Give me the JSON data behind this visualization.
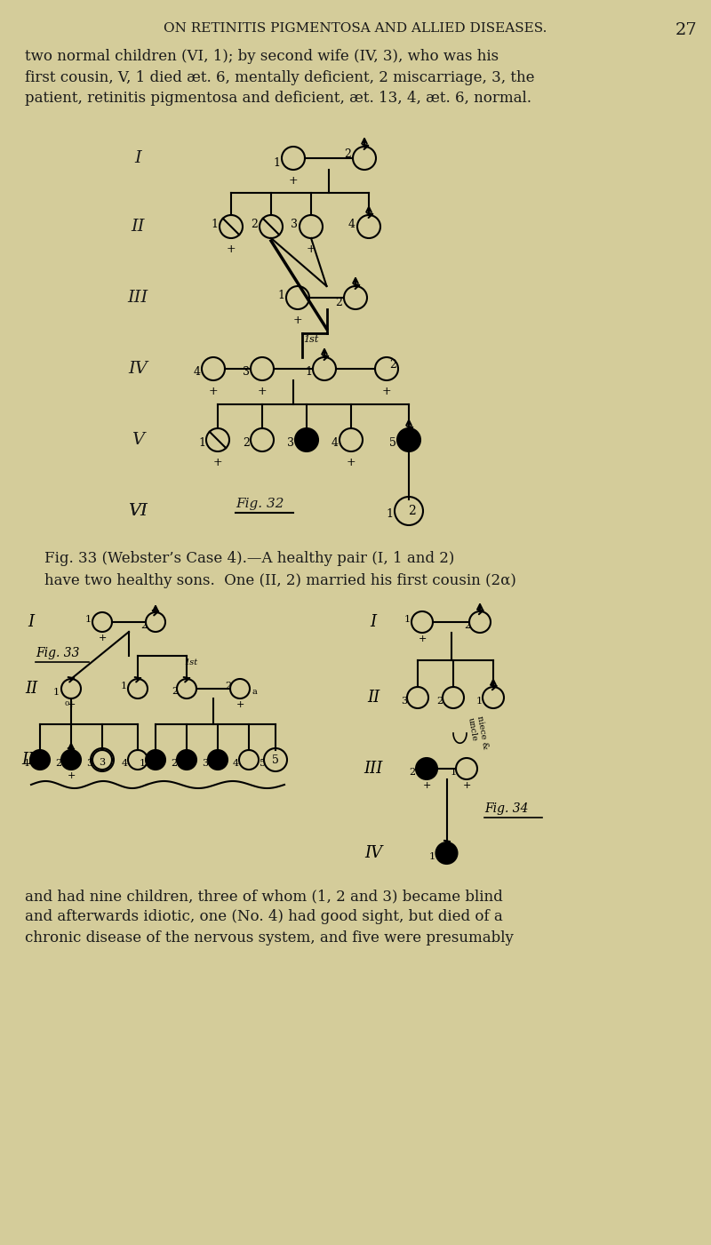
{
  "bg_color": "#d4cc9a",
  "text_color": "#1a1a1a",
  "page_title": "ON RETINITIS PIGMENTOSA AND ALLIED DISEASES.",
  "page_number": "27",
  "para1": "two normal children (VI, 1); by second wife (IV, 3), who was his\nfirst cousin, V, 1 died æt. 6, mentally deficient, 2 miscarriage, 3, the\npatient, retinitis pigmentosa and deficient, æt. 13, 4, æt. 6, normal.",
  "fig33_caption": "Fig. 33 (Webster’s Case 4).—A healthy pair (I, 1 and 2)\nhave two healthy sons.  One (II, 2) married his first cousin (2α)",
  "para2": "and had nine children, three of whom (1, 2 and 3) became blind\nand afterwards idiotic, one (No. 4) had good sight, but died of a\nchronic disease of the nervous system, and five were presumably"
}
